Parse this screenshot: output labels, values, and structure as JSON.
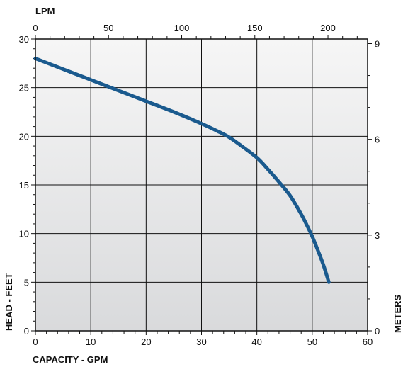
{
  "chart_data": {
    "type": "line",
    "xlabel": "CAPACITY - GPM",
    "ylabel": "HEAD - FEET",
    "top_axis_label": "LPM",
    "right_axis_label": "METERS",
    "xlim": [
      0,
      60
    ],
    "ylim": [
      0,
      30
    ],
    "x_ticks": [
      0,
      10,
      20,
      30,
      40,
      50,
      60
    ],
    "y_ticks": [
      0,
      5,
      10,
      15,
      20,
      25,
      30
    ],
    "top_xlim": [
      0,
      227.1
    ],
    "top_ticks": [
      0,
      50,
      100,
      150,
      200
    ],
    "right_ylim": [
      0,
      9.144
    ],
    "right_ticks": [
      0,
      3,
      6,
      9
    ],
    "grid": true,
    "series": [
      {
        "color": "#1a5a8e",
        "x": [
          0,
          5,
          10,
          15,
          20,
          25,
          30,
          33,
          35,
          37,
          40,
          42,
          44,
          46,
          48,
          49,
          50,
          51,
          52,
          53
        ],
        "y": [
          28,
          26.9,
          25.8,
          24.7,
          23.6,
          22.5,
          21.3,
          20.5,
          19.9,
          19.1,
          17.8,
          16.6,
          15.3,
          13.9,
          12.0,
          10.9,
          9.7,
          8.3,
          6.8,
          5.0
        ]
      }
    ]
  }
}
